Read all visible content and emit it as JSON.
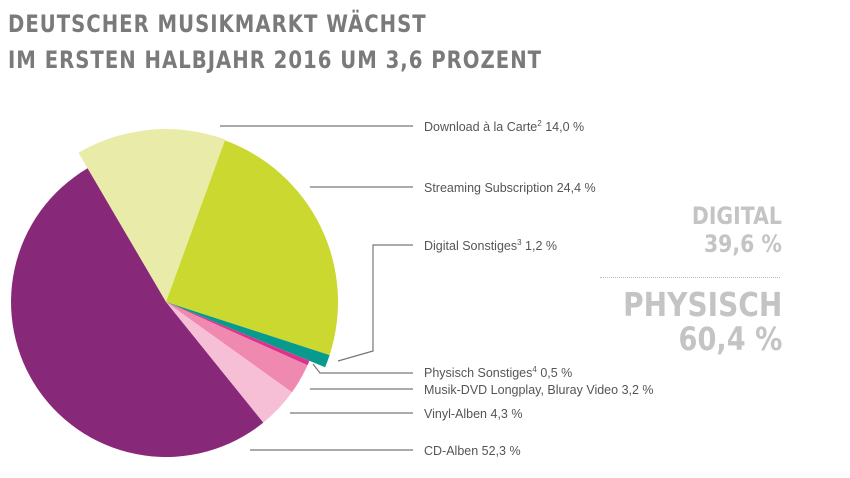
{
  "title": {
    "line1": "DEUTSCHER MUSIKMARKT WÄCHST",
    "line2": "IM ERSTEN HALBJAHR 2016 UM 3,6 PROZENT"
  },
  "labels": [
    {
      "name": "Download à la Carte",
      "sup": "2",
      "value": "14,0 %"
    },
    {
      "name": "Streaming Subscription",
      "sup": "",
      "value": "24,4 %"
    },
    {
      "name": "Digital Sonstiges",
      "sup": "3",
      "value": "1,2 %"
    },
    {
      "name": "Physisch Sonstiges",
      "sup": "4",
      "value": "0,5 %"
    },
    {
      "name": "Musik-DVD Longplay, Bluray Video",
      "sup": "",
      "value": "3,2 %"
    },
    {
      "name": "Vinyl-Alben",
      "sup": "",
      "value": "4,3 %"
    },
    {
      "name": "CD-Alben",
      "sup": "",
      "value": "52,3 %"
    }
  ],
  "summary": {
    "digital": {
      "name": "DIGITAL",
      "value": "39,6 %"
    },
    "physisch": {
      "name": "PHYSISCH",
      "value": "60,4 %"
    }
  },
  "colors": {
    "download": "#E8ECA8",
    "streaming": "#CAD82F",
    "digital_other": "#089A8C",
    "physical_other": "#E0318A",
    "dvd": "#F089B0",
    "vinyl": "#F7BFD6",
    "cd": "#882878",
    "title": "#7A7A7A",
    "summary": "#C4C4C4"
  },
  "chart_data": {
    "type": "pie",
    "title": "DEUTSCHER MUSIKMARKT WÄCHST IM ERSTEN HALBJAHR 2016 UM 3,6 PROZENT",
    "categories": [
      "Download à la Carte",
      "Streaming Subscription",
      "Digital Sonstiges",
      "Physisch Sonstiges",
      "Musik-DVD Longplay, Bluray Video",
      "Vinyl-Alben",
      "CD-Alben"
    ],
    "values": [
      14.0,
      24.4,
      1.2,
      0.5,
      3.2,
      4.3,
      52.3
    ],
    "unit": "%",
    "groups": [
      {
        "name": "DIGITAL",
        "total": 39.6,
        "members": [
          "Download à la Carte",
          "Streaming Subscription",
          "Digital Sonstiges"
        ]
      },
      {
        "name": "PHYSISCH",
        "total": 60.4,
        "members": [
          "Physisch Sonstiges",
          "Musik-DVD Longplay, Bluray Video",
          "Vinyl-Alben",
          "CD-Alben"
        ]
      }
    ],
    "legend_position": "right, leader lines",
    "exploded": [
      "Download à la Carte",
      "Streaming Subscription",
      "Digital Sonstiges"
    ]
  }
}
